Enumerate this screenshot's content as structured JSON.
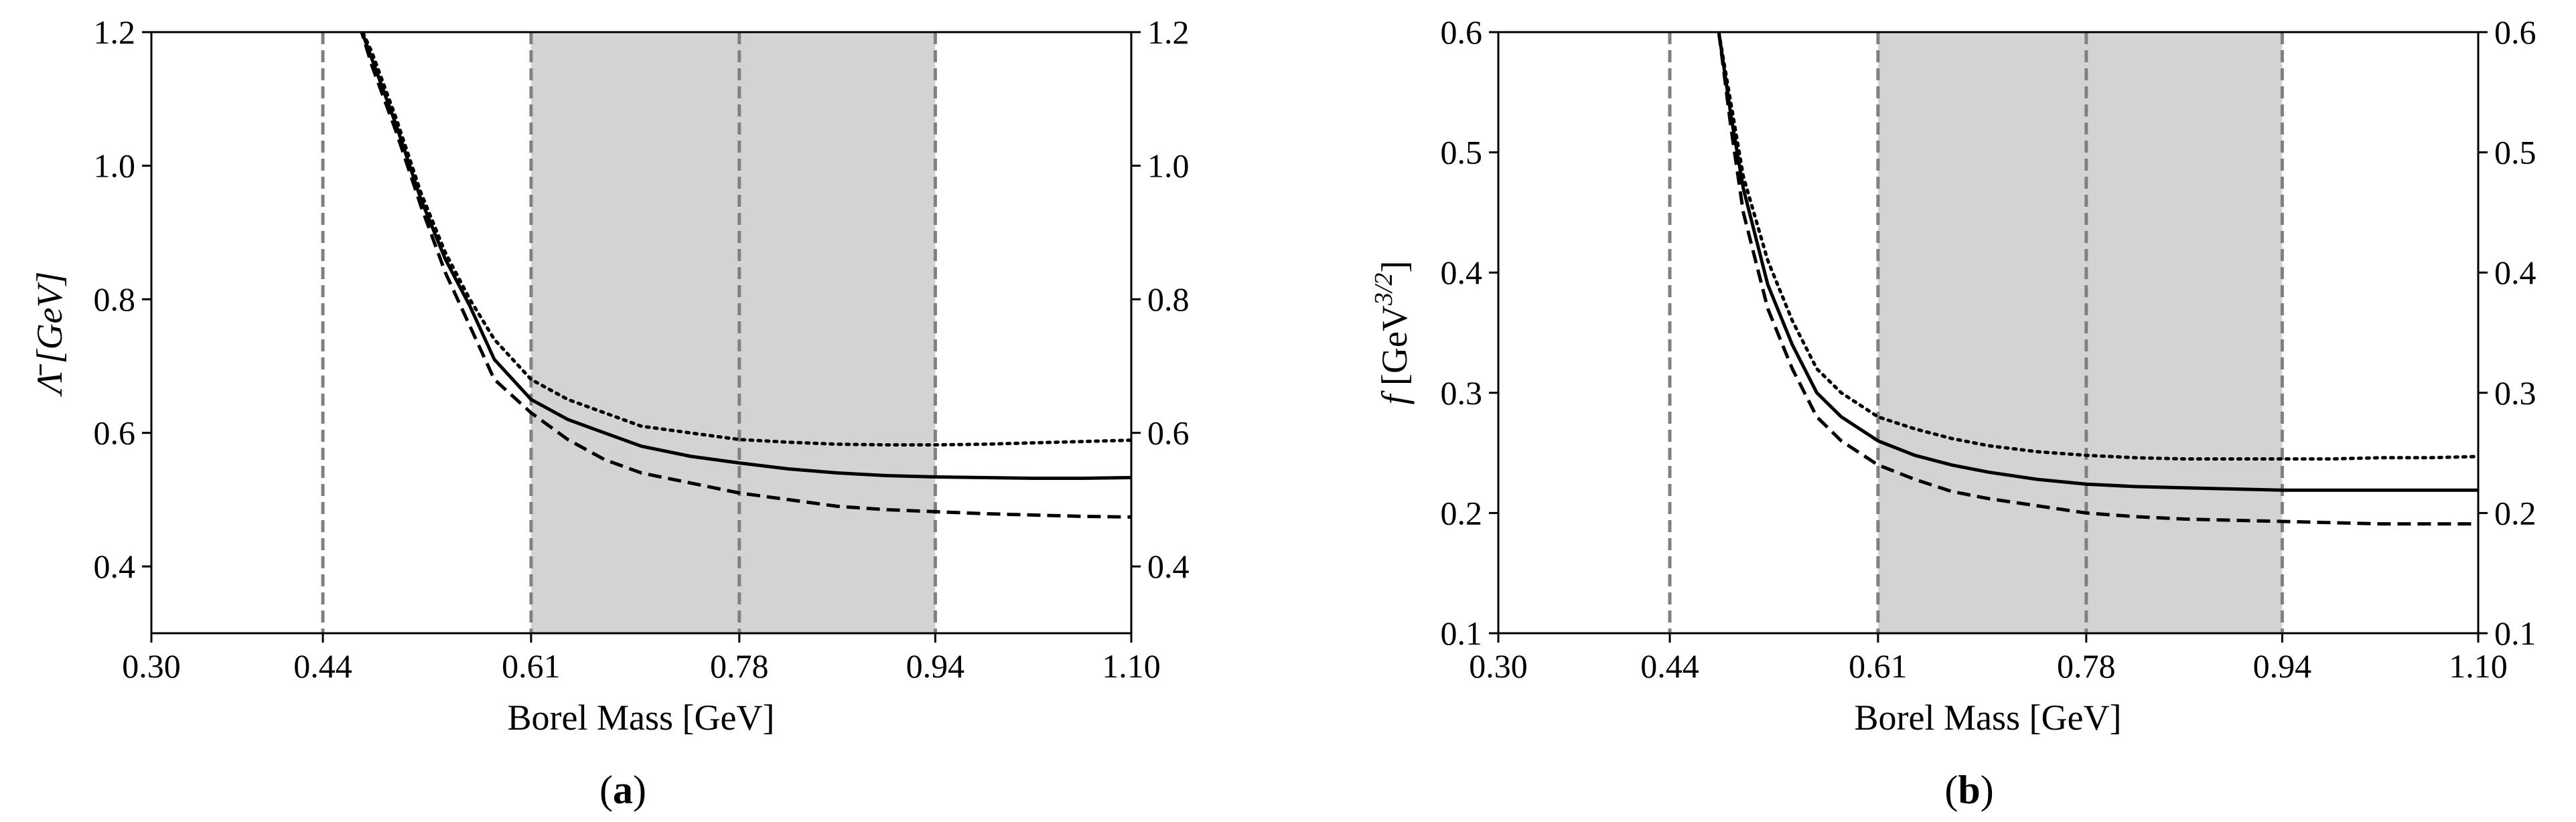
{
  "chart_data": [
    {
      "type": "line",
      "panel_label": "a",
      "xlabel": "Borel Mass [GeV]",
      "ylabel": "Λ̄ [GeV]",
      "xlim": [
        0.3,
        1.1
      ],
      "ylim": [
        0.3,
        1.2
      ],
      "x_ticks": [
        "0.30",
        "0.44",
        "0.61",
        "0.78",
        "0.94",
        "1.10"
      ],
      "y_ticks": [
        "0.4",
        "0.6",
        "0.8",
        "1.0",
        "1.2"
      ],
      "right_axis_ticks": true,
      "grid": false,
      "shaded_region": [
        0.61,
        0.94
      ],
      "vertical_lines": [
        0.44,
        0.61,
        0.78,
        0.94
      ],
      "series": [
        {
          "style": "solid",
          "x": [
            0.47,
            0.48,
            0.5,
            0.52,
            0.54,
            0.56,
            0.58,
            0.61,
            0.64,
            0.67,
            0.7,
            0.74,
            0.78,
            0.82,
            0.86,
            0.9,
            0.94,
            0.98,
            1.02,
            1.06,
            1.1
          ],
          "y": [
            1.21,
            1.16,
            1.06,
            0.95,
            0.86,
            0.79,
            0.71,
            0.65,
            0.62,
            0.6,
            0.58,
            0.565,
            0.555,
            0.546,
            0.54,
            0.536,
            0.534,
            0.533,
            0.532,
            0.532,
            0.533
          ]
        },
        {
          "style": "dashed",
          "x": [
            0.47,
            0.48,
            0.5,
            0.52,
            0.54,
            0.56,
            0.58,
            0.61,
            0.64,
            0.67,
            0.7,
            0.74,
            0.78,
            0.82,
            0.86,
            0.9,
            0.94,
            0.98,
            1.02,
            1.06,
            1.1
          ],
          "y": [
            1.21,
            1.15,
            1.05,
            0.94,
            0.84,
            0.76,
            0.68,
            0.63,
            0.59,
            0.56,
            0.54,
            0.525,
            0.51,
            0.5,
            0.49,
            0.485,
            0.482,
            0.479,
            0.477,
            0.475,
            0.474
          ]
        },
        {
          "style": "dotted",
          "x": [
            0.47,
            0.48,
            0.5,
            0.52,
            0.54,
            0.56,
            0.58,
            0.61,
            0.64,
            0.67,
            0.7,
            0.74,
            0.78,
            0.82,
            0.86,
            0.9,
            0.94,
            0.98,
            1.02,
            1.06,
            1.1
          ],
          "y": [
            1.21,
            1.17,
            1.07,
            0.96,
            0.87,
            0.8,
            0.74,
            0.68,
            0.65,
            0.63,
            0.61,
            0.6,
            0.59,
            0.586,
            0.583,
            0.582,
            0.582,
            0.583,
            0.585,
            0.587,
            0.589
          ]
        }
      ]
    },
    {
      "type": "line",
      "panel_label": "b",
      "xlabel": "Borel Mass [GeV]",
      "ylabel": "f [GeV3/2]",
      "xlim": [
        0.3,
        1.1
      ],
      "ylim": [
        0.1,
        0.6
      ],
      "x_ticks": [
        "0.30",
        "0.44",
        "0.61",
        "0.78",
        "0.94",
        "1.10"
      ],
      "y_ticks": [
        "0.1",
        "0.2",
        "0.3",
        "0.4",
        "0.5",
        "0.6"
      ],
      "right_axis_ticks": true,
      "grid": false,
      "shaded_region": [
        0.61,
        0.94
      ],
      "vertical_lines": [
        0.44,
        0.61,
        0.78,
        0.94
      ],
      "series": [
        {
          "style": "solid",
          "x": [
            0.48,
            0.49,
            0.5,
            0.52,
            0.54,
            0.56,
            0.58,
            0.61,
            0.64,
            0.67,
            0.7,
            0.74,
            0.78,
            0.82,
            0.86,
            0.9,
            0.94,
            0.98,
            1.02,
            1.06,
            1.1
          ],
          "y": [
            0.6,
            0.53,
            0.47,
            0.39,
            0.34,
            0.3,
            0.28,
            0.26,
            0.248,
            0.24,
            0.234,
            0.228,
            0.224,
            0.222,
            0.221,
            0.22,
            0.219,
            0.219,
            0.219,
            0.219,
            0.219
          ]
        },
        {
          "style": "dashed",
          "x": [
            0.48,
            0.49,
            0.5,
            0.52,
            0.54,
            0.56,
            0.58,
            0.61,
            0.64,
            0.67,
            0.7,
            0.74,
            0.78,
            0.82,
            0.86,
            0.9,
            0.94,
            0.98,
            1.02,
            1.06,
            1.1
          ],
          "y": [
            0.6,
            0.52,
            0.45,
            0.37,
            0.32,
            0.28,
            0.26,
            0.24,
            0.228,
            0.218,
            0.212,
            0.206,
            0.2,
            0.197,
            0.195,
            0.194,
            0.193,
            0.192,
            0.191,
            0.191,
            0.191
          ]
        },
        {
          "style": "dotted",
          "x": [
            0.48,
            0.49,
            0.5,
            0.52,
            0.54,
            0.56,
            0.58,
            0.61,
            0.64,
            0.67,
            0.7,
            0.74,
            0.78,
            0.82,
            0.86,
            0.9,
            0.94,
            0.98,
            1.02,
            1.06,
            1.1
          ],
          "y": [
            0.6,
            0.54,
            0.48,
            0.41,
            0.36,
            0.32,
            0.3,
            0.28,
            0.27,
            0.262,
            0.256,
            0.251,
            0.248,
            0.246,
            0.245,
            0.245,
            0.245,
            0.245,
            0.246,
            0.246,
            0.247
          ]
        }
      ]
    }
  ]
}
